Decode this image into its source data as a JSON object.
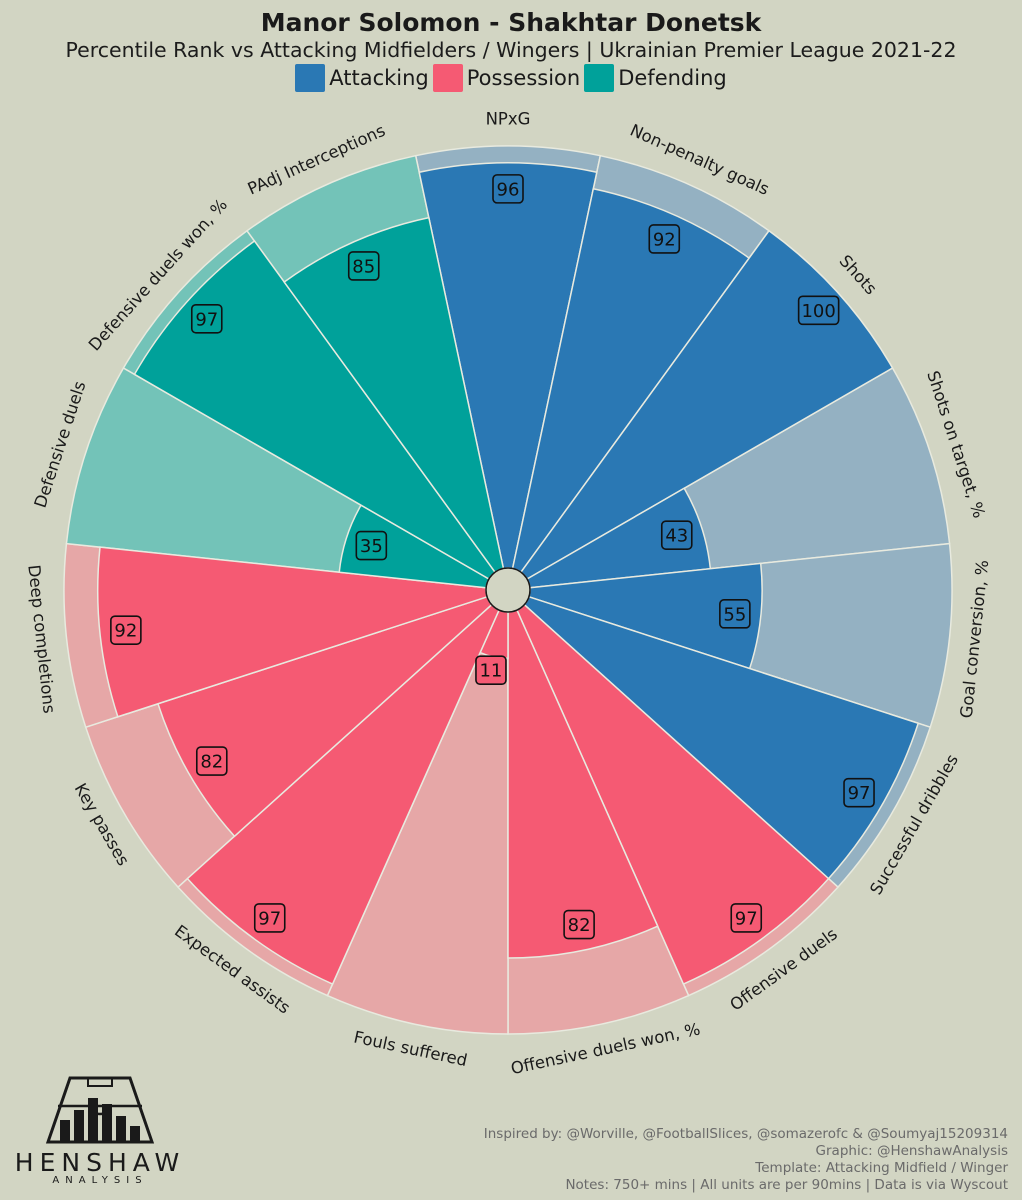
{
  "header": {
    "title": "Manor Solomon - Shakhtar Donetsk",
    "subtitle": "Percentile Rank vs Attacking Midfielders / Wingers | Ukrainian Premier League 2021-22"
  },
  "legend": [
    {
      "label": "Attacking",
      "color": "#2a78b4"
    },
    {
      "label": "Possession",
      "color": "#f55a73"
    },
    {
      "label": "Defending",
      "color": "#00a19a"
    }
  ],
  "colors": {
    "background": "#d2d5c3",
    "attacking_light": "#94b1c2",
    "possession_light": "#e6a7a7",
    "defending_light": "#73c3b8",
    "center": "#d2d5c3"
  },
  "chart_data": {
    "type": "pizza",
    "title": "Manor Solomon - Shakhtar Donetsk",
    "subtitle": "Percentile Rank vs Attacking Midfielders / Wingers | Ukrainian Premier League 2021-22",
    "scale": [
      0,
      100
    ],
    "params": [
      {
        "label": "NPxG",
        "value": 96,
        "group": "Attacking"
      },
      {
        "label": "Non-penalty goals",
        "value": 92,
        "group": "Attacking"
      },
      {
        "label": "Shots",
        "value": 100,
        "group": "Attacking"
      },
      {
        "label": "Shots on target, %",
        "value": 43,
        "group": "Attacking"
      },
      {
        "label": "Goal conversion, %",
        "value": 55,
        "group": "Attacking"
      },
      {
        "label": "Successful dribbles",
        "value": 97,
        "group": "Attacking"
      },
      {
        "label": "Offensive duels",
        "value": 97,
        "group": "Possession"
      },
      {
        "label": "Offensive duels won, %",
        "value": 82,
        "group": "Possession"
      },
      {
        "label": "Fouls suffered",
        "value": 11,
        "group": "Possession"
      },
      {
        "label": "Expected assists",
        "value": 97,
        "group": "Possession"
      },
      {
        "label": "Key passes",
        "value": 82,
        "group": "Possession"
      },
      {
        "label": "Deep completions",
        "value": 92,
        "group": "Possession"
      },
      {
        "label": "Defensive duels",
        "value": 35,
        "group": "Defending"
      },
      {
        "label": "Defensive duels won, %",
        "value": 97,
        "group": "Defending"
      },
      {
        "label": "PAdj Interceptions",
        "value": 85,
        "group": "Defending"
      }
    ]
  },
  "footer": {
    "line1": "Inspired by: @Worville, @FootballSlices, @somazerofc & @Soumyaj15209314",
    "line2": "Graphic: @HenshawAnalysis",
    "line3": "Template: Attacking Midfield / Winger",
    "line4": "Notes: 750+ mins | All units are per 90mins | Data is via Wyscout"
  },
  "logo": {
    "wordmark": "HENSHAW",
    "sub": "ANALYSIS"
  }
}
